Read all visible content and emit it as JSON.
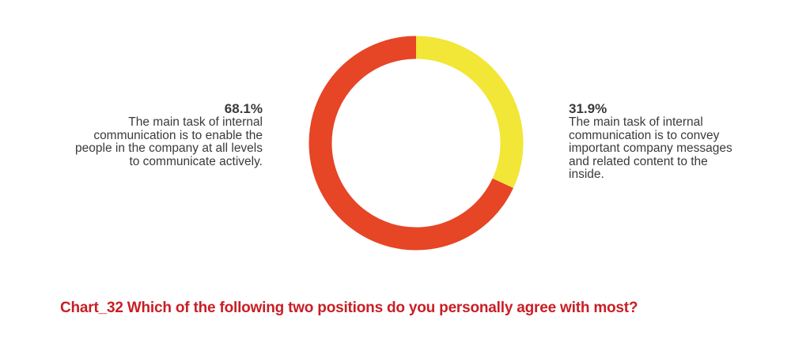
{
  "chart_data": {
    "type": "pie",
    "style": "donut",
    "title": "Chart_32 Which of the following two positions do you personally agree with most?",
    "slices": [
      {
        "value": 31.9,
        "label": "31.9%",
        "description": "The main task of internal communication is to convey important company messages and related content to the inside.",
        "color": "#f2e637"
      },
      {
        "value": 68.1,
        "label": "68.1%",
        "description": "The main task of internal communication is to enable the people in the company at all levels to communicate actively.",
        "color": "#e64526"
      }
    ]
  }
}
